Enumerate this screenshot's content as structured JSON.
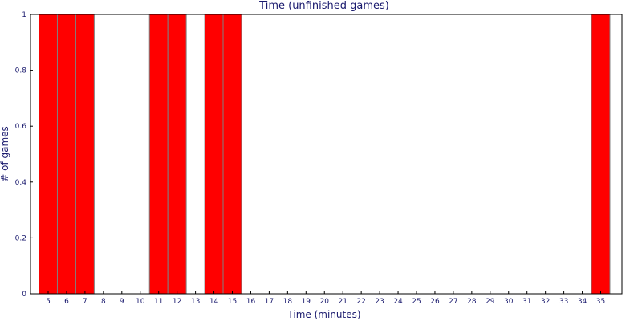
{
  "chart_data": {
    "type": "bar",
    "title": "Time (unfinished games)",
    "xlabel": "Time (minutes)",
    "ylabel": "# of games",
    "ylim": [
      0,
      1
    ],
    "yticks": [
      "0",
      "0.2",
      "0.4",
      "0.6",
      "0.8",
      "1"
    ],
    "categories": [
      "5",
      "6",
      "7",
      "8",
      "9",
      "10",
      "11",
      "12",
      "13",
      "14",
      "15",
      "16",
      "17",
      "18",
      "19",
      "20",
      "21",
      "22",
      "23",
      "24",
      "25",
      "26",
      "27",
      "28",
      "29",
      "30",
      "31",
      "32",
      "33",
      "34",
      "35"
    ],
    "values": [
      1,
      1,
      1,
      0,
      0,
      0,
      1,
      1,
      0,
      1,
      1,
      0,
      0,
      0,
      0,
      0,
      0,
      0,
      0,
      0,
      0,
      0,
      0,
      0,
      0,
      0,
      0,
      0,
      0,
      0,
      1
    ],
    "bar_color": "#ff0000",
    "bar_edge_color": "#808080",
    "grid": false
  }
}
